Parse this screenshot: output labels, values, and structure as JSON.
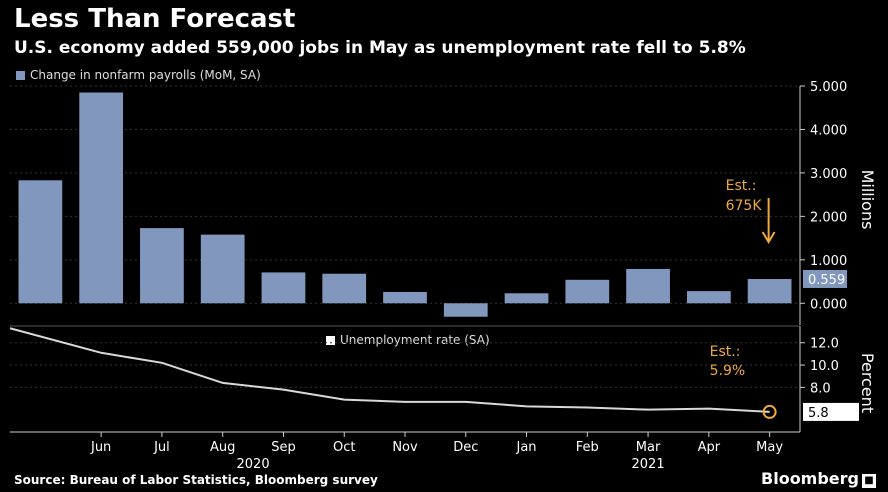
{
  "header": {
    "title": "Less Than Forecast",
    "subtitle": "U.S. economy added 559,000 jobs in May as unemployment rate fell to 5.8%"
  },
  "footer": {
    "source": "Source: Bureau of Labor Statistics, Bloomberg survey",
    "brand": "Bloomberg"
  },
  "colors": {
    "bar": "#8197bd",
    "line": "#d9d9d9",
    "annotation": "#f0a83c",
    "background": "#000000"
  },
  "chart_data": [
    {
      "type": "bar",
      "legend": "Change in nonfarm payrolls (MoM, SA)",
      "ylabel": "Millions",
      "categories": [
        "May",
        "Jun",
        "Jul",
        "Aug",
        "Sep",
        "Oct",
        "Nov",
        "Dec",
        "Jan",
        "Feb",
        "Mar",
        "Apr",
        "May"
      ],
      "values": [
        2.83,
        4.85,
        1.73,
        1.58,
        0.71,
        0.68,
        0.26,
        -0.31,
        0.23,
        0.54,
        0.79,
        0.28,
        0.559
      ],
      "ylim": [
        -0.5,
        5.0
      ],
      "yticks": [
        "5.000",
        "4.000",
        "3.000",
        "2.000",
        "1.000",
        "0.000"
      ],
      "ytick_values": [
        5,
        4,
        3,
        2,
        1,
        0
      ],
      "last_value_label": "0.559",
      "annotation": {
        "line1": "Est.:",
        "line2": "675K"
      }
    },
    {
      "type": "line",
      "legend": "Unemployment rate (SA)",
      "ylabel": "Percent",
      "x": [
        "May",
        "Jun",
        "Jul",
        "Aug",
        "Sep",
        "Oct",
        "Nov",
        "Dec",
        "Jan",
        "Feb",
        "Mar",
        "Apr",
        "May"
      ],
      "values": [
        13.3,
        11.1,
        10.2,
        8.4,
        7.8,
        6.9,
        6.7,
        6.7,
        6.3,
        6.2,
        6.0,
        6.1,
        5.8
      ],
      "ylim": [
        4.0,
        13.5
      ],
      "yticks": [
        "12.0",
        "10.0",
        "8.0"
      ],
      "ytick_values": [
        12,
        10,
        8
      ],
      "last_value_label": "5.8",
      "annotation": {
        "line1": "Est.:",
        "line2": "5.9%"
      },
      "x_tick_labels": [
        "Jun",
        "Jul",
        "Aug",
        "Sep",
        "Oct",
        "Nov",
        "Dec",
        "Jan",
        "Feb",
        "Mar",
        "Apr",
        "May"
      ],
      "year_labels": [
        "2020",
        "2021"
      ]
    }
  ]
}
